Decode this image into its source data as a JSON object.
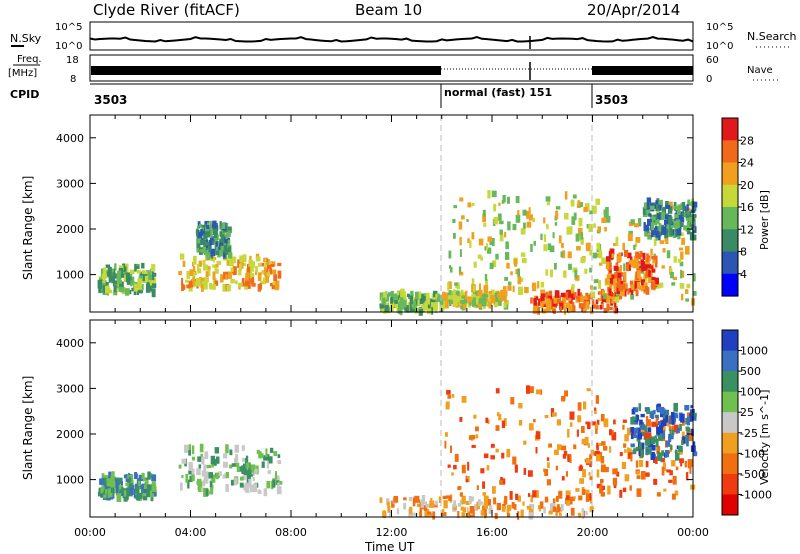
{
  "header": {
    "station": "Clyde River (fitACF)",
    "beam": "Beam 10",
    "date": "20/Apr/2014"
  },
  "top_panels": {
    "nsky_label": "N.Sky",
    "nsky_ticks": [
      "10^5",
      "10^0"
    ],
    "nsearch_label": "N.Search",
    "nsearch_ticks": [
      "10^5",
      "10^0"
    ],
    "freq_label": "Freq.",
    "freq_unit": "[MHz]",
    "freq_ticks": [
      "18",
      "8"
    ],
    "nave_label": "Nave",
    "nave_ticks": [
      "60",
      "0"
    ],
    "cpid_label": "CPID",
    "cpid_segments": [
      {
        "label": "3503",
        "start_hour": 0,
        "end_hour": 14
      },
      {
        "label": "normal (fast) 151",
        "start_hour": 14,
        "end_hour": 20
      },
      {
        "label": "3503",
        "start_hour": 20,
        "end_hour": 24
      }
    ]
  },
  "x_axis": {
    "label": "Time UT",
    "ticks": [
      "00:00",
      "04:00",
      "08:00",
      "12:00",
      "16:00",
      "20:00",
      "00:00"
    ],
    "tick_hours": [
      0,
      4,
      8,
      12,
      16,
      20,
      24
    ],
    "range_hours": [
      0,
      24
    ]
  },
  "chart_data": [
    {
      "type": "heatmap",
      "name": "power",
      "ylabel": "Slant Range [km]",
      "yticks": [
        1000,
        2000,
        3000,
        4000
      ],
      "ylim": [
        180,
        4500
      ],
      "xlim_hours": [
        0,
        24
      ],
      "colorbar": {
        "label": "Power [dB]",
        "ticks": [
          "4",
          "8",
          "12",
          "16",
          "20",
          "24",
          "28"
        ],
        "colors": [
          "#0000ff",
          "#2b56b4",
          "#3a8a63",
          "#66b85a",
          "#c7d83a",
          "#f0a01e",
          "#f06a1a",
          "#e01a1a"
        ]
      },
      "blobs": [
        {
          "x_hours": [
            0.3,
            2.5
          ],
          "y_km": [
            600,
            1200
          ],
          "level": 3
        },
        {
          "x_hours": [
            3.5,
            7.5
          ],
          "y_km": [
            700,
            1400
          ],
          "level": 5
        },
        {
          "x_hours": [
            4.2,
            5.5
          ],
          "y_km": [
            1400,
            2100
          ],
          "level": 2
        },
        {
          "x_hours": [
            11.5,
            14.0
          ],
          "y_km": [
            180,
            600
          ],
          "level": 3
        },
        {
          "x_hours": [
            14.0,
            16.5
          ],
          "y_km": [
            300,
            600
          ],
          "level": 4
        },
        {
          "x_hours": [
            14.2,
            19.5
          ],
          "y_km": [
            600,
            2800
          ],
          "level": 4
        },
        {
          "x_hours": [
            17.5,
            21.0
          ],
          "y_km": [
            200,
            600
          ],
          "level": 6
        },
        {
          "x_hours": [
            19.0,
            24.0
          ],
          "y_km": [
            400,
            2600
          ],
          "level": 4
        },
        {
          "x_hours": [
            20.5,
            22.5
          ],
          "y_km": [
            600,
            1500
          ],
          "level": 6
        },
        {
          "x_hours": [
            22.0,
            24.0
          ],
          "y_km": [
            1800,
            2600
          ],
          "level": 2
        }
      ]
    },
    {
      "type": "heatmap",
      "name": "velocity",
      "ylabel": "Slant Range [km]",
      "yticks": [
        1000,
        2000,
        3000,
        4000
      ],
      "ylim": [
        180,
        4500
      ],
      "xlim_hours": [
        0,
        24
      ],
      "colorbar": {
        "label": "Velocity [m s^-1]",
        "ticks": [
          "1000",
          "500",
          "100",
          "25",
          "-25",
          "-100",
          "-500",
          "-1000"
        ],
        "colors": [
          "#2040c0",
          "#3a70c0",
          "#3a9060",
          "#70c050",
          "#c8c8c8",
          "#f0a020",
          "#f07010",
          "#f03a10",
          "#e00000"
        ]
      },
      "blobs": [
        {
          "x_hours": [
            0.3,
            2.5
          ],
          "y_km": [
            600,
            1100
          ],
          "level": 2
        },
        {
          "x_hours": [
            3.5,
            7.5
          ],
          "y_km": [
            700,
            1700
          ],
          "level": 3
        },
        {
          "x_hours": [
            11.5,
            20.0
          ],
          "y_km": [
            200,
            600
          ],
          "level": 5
        },
        {
          "x_hours": [
            14.0,
            20.5
          ],
          "y_km": [
            600,
            3000
          ],
          "level": 6
        },
        {
          "x_hours": [
            19.5,
            24.0
          ],
          "y_km": [
            600,
            2400
          ],
          "level": 6
        },
        {
          "x_hours": [
            21.5,
            24.0
          ],
          "y_km": [
            1500,
            2600
          ],
          "level": 1
        }
      ]
    }
  ]
}
